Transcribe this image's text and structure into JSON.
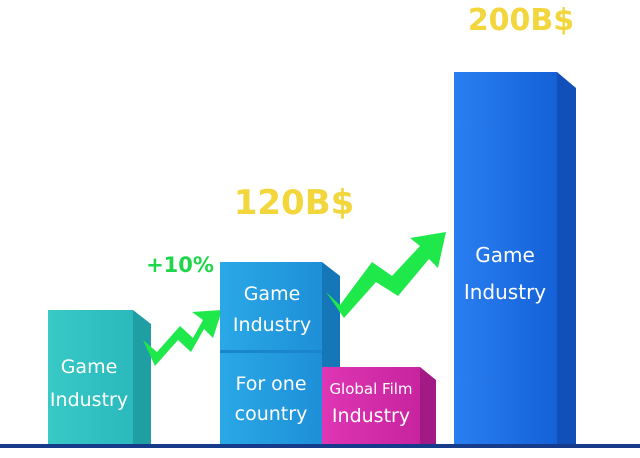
{
  "chart_data": {
    "type": "bar",
    "stack_labels": [
      {
        "year": "",
        "top": "Game Industry",
        "value": ""
      },
      {
        "year": "",
        "top": "Game Industry",
        "bottom": "For one country",
        "value": "120B$"
      },
      {
        "year": "",
        "top": "Global Film Industry",
        "value": ""
      },
      {
        "year": "",
        "top": "Game Industry",
        "value": "200B$"
      }
    ],
    "values": [
      null,
      120,
      null,
      200
    ],
    "unit": "B$",
    "growth_labels": [
      "+10%"
    ],
    "colors": {
      "bar1": "#3ccfc8",
      "bar2": "#2a9fe0",
      "bar3": "#d62fae",
      "bar4": "#1a6ee6",
      "arrow": "#1fe84a",
      "value_text": "#f2d63c",
      "baseline": "#163b8a"
    }
  }
}
